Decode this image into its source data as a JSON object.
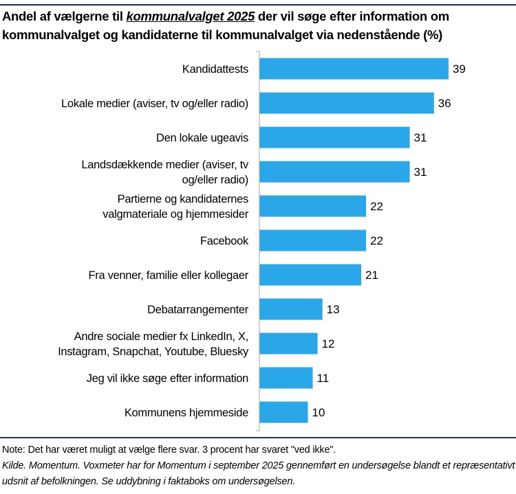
{
  "title": {
    "before": "Andel af vælgerne til ",
    "emphasis": "kommunalvalget 2025",
    "after": " der vil søge efter information om kommunalvalget og kandidaterne til kommunalvalget via nedenstående (%)"
  },
  "colors": {
    "bar": "#2aa7e8",
    "rule": "#1f2d5a",
    "axis": "#a6a6a6"
  },
  "chart_data": {
    "type": "bar",
    "orientation": "horizontal",
    "categories": [
      "Kandidattests",
      "Lokale medier (aviser, tv og/eller radio)",
      "Den lokale ugeavis",
      "Landsdækkende medier (aviser, tv og/eller radio)",
      "Partierne og kandidaternes valgmateriale og hjemmesider",
      "Facebook",
      "Fra venner, familie eller kollegaer",
      "Debatarrangementer",
      "Andre sociale medier fx LinkedIn, X, Instagram, Snapchat, Youtube, Bluesky",
      "Jeg vil ikke søge efter information",
      "Kommunens hjemmeside"
    ],
    "category_lines": [
      [
        "Kandidattests"
      ],
      [
        "Lokale medier (aviser, tv og/eller radio)"
      ],
      [
        "Den lokale ugeavis"
      ],
      [
        "Landsdækkende medier (aviser, tv",
        "og/eller radio)"
      ],
      [
        "Partierne og kandidaternes",
        "valgmateriale og hjemmesider"
      ],
      [
        "Facebook"
      ],
      [
        "Fra venner, familie eller kollegaer"
      ],
      [
        "Debatarrangementer"
      ],
      [
        "Andre sociale medier fx LinkedIn, X,",
        "Instagram, Snapchat, Youtube, Bluesky"
      ],
      [
        "Jeg vil ikke søge efter information"
      ],
      [
        "Kommunens hjemmeside"
      ]
    ],
    "values": [
      39,
      36,
      31,
      31,
      22,
      22,
      21,
      13,
      12,
      11,
      10
    ],
    "data_labels": true,
    "grid": false,
    "xlim": [
      0,
      45
    ]
  },
  "notes": {
    "note": "Note: Det har været muligt at vælge flere svar. 3 procent har svaret \"ved ikke\".",
    "source": "Kilde. Momentum. Voxmeter har for Momentum i september 2025 gennemført en undersøgelse blandt et repræsentativt udsnit af befolkningen. Se uddybning i faktaboks om undersøgelsen."
  }
}
